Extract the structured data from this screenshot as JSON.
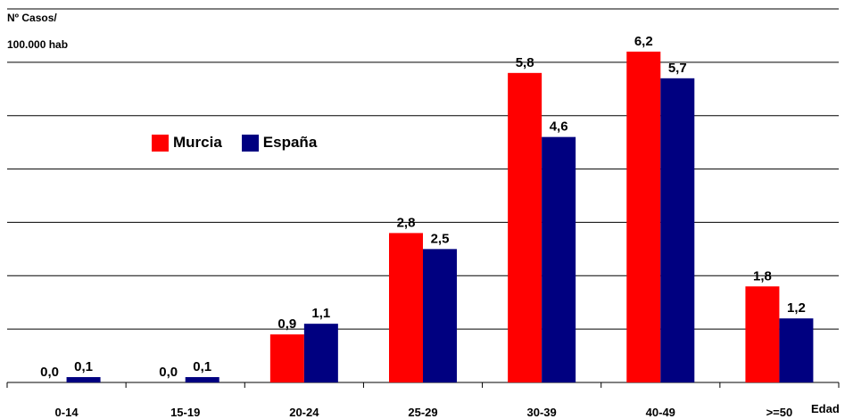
{
  "chart_data": {
    "type": "bar",
    "ylabel_line1": "Nº Casos/",
    "ylabel_line2": "100.000 hab",
    "xlabel": "Edad",
    "categories": [
      "0-14",
      "15-19",
      "20-24",
      "25-29",
      "30-39",
      "40-49",
      ">=50"
    ],
    "series": [
      {
        "name": "Murcia",
        "color": "#ff0000",
        "values": [
          0.0,
          0.0,
          0.9,
          2.8,
          5.8,
          6.2,
          1.8
        ],
        "labels": [
          "0,0",
          "0,0",
          "0,9",
          "2,8",
          "5,8",
          "6,2",
          "1,8"
        ]
      },
      {
        "name": "España",
        "color": "#000080",
        "values": [
          0.1,
          0.1,
          1.1,
          2.5,
          4.6,
          5.7,
          1.2
        ],
        "labels": [
          "0,1",
          "0,1",
          "1,1",
          "2,5",
          "4,6",
          "5,7",
          "1,2"
        ]
      }
    ],
    "ylim": [
      0,
      7
    ],
    "grid": true,
    "legend_position": "upper-left"
  }
}
